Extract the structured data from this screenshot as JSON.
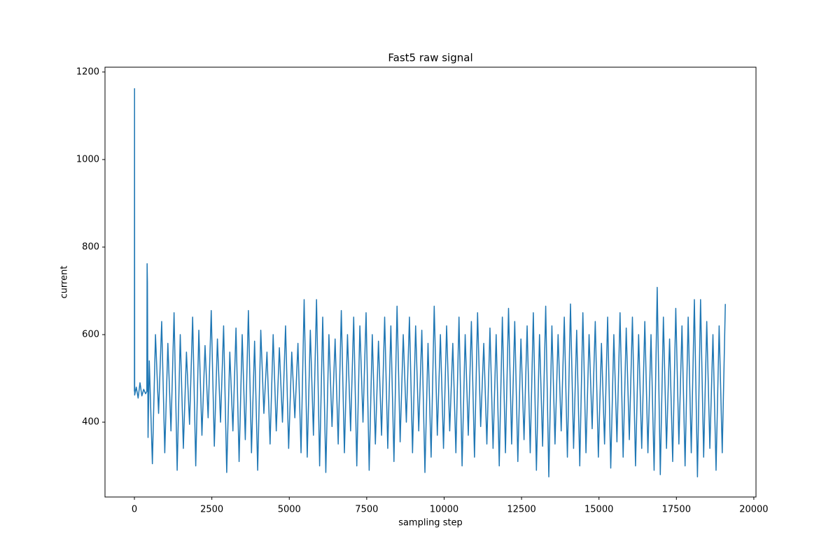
{
  "chart_data": {
    "type": "line",
    "title": "Fast5 raw signal",
    "x_label": "sampling step",
    "y_label": "current",
    "xlim": [
      -950,
      20070
    ],
    "ylim": [
      229,
      1211
    ],
    "xticks": [
      0,
      2500,
      5000,
      7500,
      10000,
      12500,
      15000,
      17500,
      20000
    ],
    "yticks": [
      400,
      600,
      800,
      1000,
      1200
    ],
    "series": [
      {
        "color": "#1f77b4",
        "x": [
          0,
          4,
          8,
          60,
          120,
          180,
          240,
          300,
          360,
          400,
          410,
          420,
          440,
          480,
          580,
          680,
          780,
          880,
          980,
          1080,
          1180,
          1280,
          1380,
          1480,
          1580,
          1680,
          1780,
          1880,
          1980,
          2080,
          2180,
          2280,
          2380,
          2480,
          2580,
          2680,
          2780,
          2880,
          2980,
          3080,
          3180,
          3280,
          3380,
          3480,
          3580,
          3680,
          3780,
          3880,
          3980,
          4080,
          4180,
          4280,
          4380,
          4480,
          4580,
          4680,
          4780,
          4880,
          4980,
          5080,
          5180,
          5280,
          5380,
          5480,
          5580,
          5680,
          5780,
          5880,
          5980,
          6080,
          6180,
          6280,
          6380,
          6480,
          6580,
          6680,
          6780,
          6880,
          6980,
          7080,
          7180,
          7280,
          7380,
          7480,
          7580,
          7680,
          7780,
          7880,
          7980,
          8080,
          8180,
          8280,
          8380,
          8480,
          8580,
          8680,
          8780,
          8880,
          8980,
          9080,
          9180,
          9280,
          9380,
          9480,
          9580,
          9680,
          9780,
          9880,
          9980,
          10080,
          10180,
          10280,
          10380,
          10480,
          10580,
          10680,
          10780,
          10880,
          10980,
          11080,
          11180,
          11280,
          11380,
          11480,
          11580,
          11680,
          11780,
          11880,
          11980,
          12080,
          12180,
          12280,
          12380,
          12480,
          12580,
          12680,
          12780,
          12880,
          12980,
          13080,
          13180,
          13280,
          13380,
          13480,
          13580,
          13680,
          13780,
          13880,
          13980,
          14080,
          14180,
          14280,
          14380,
          14480,
          14580,
          14680,
          14780,
          14880,
          14980,
          15080,
          15180,
          15280,
          15380,
          15480,
          15580,
          15680,
          15780,
          15880,
          15980,
          16080,
          16180,
          16280,
          16380,
          16480,
          16580,
          16680,
          16780,
          16880,
          16980,
          17080,
          17180,
          17280,
          17380,
          17480,
          17580,
          17680,
          17780,
          17880,
          17980,
          18080,
          18180,
          18280,
          18380,
          18480,
          18580,
          18680,
          18780,
          18880,
          18980,
          19080
        ],
        "values": [
          470,
          1162,
          462,
          480,
          455,
          490,
          460,
          475,
          465,
          470,
          762,
          720,
          365,
          540,
          305,
          600,
          420,
          630,
          330,
          580,
          380,
          650,
          290,
          600,
          340,
          560,
          395,
          640,
          300,
          610,
          370,
          575,
          410,
          655,
          345,
          590,
          400,
          620,
          285,
          560,
          380,
          615,
          310,
          600,
          360,
          655,
          330,
          585,
          290,
          610,
          420,
          560,
          350,
          600,
          380,
          570,
          400,
          620,
          340,
          560,
          410,
          580,
          330,
          680,
          320,
          610,
          370,
          680,
          300,
          640,
          285,
          600,
          390,
          590,
          350,
          655,
          330,
          600,
          380,
          640,
          300,
          620,
          400,
          650,
          290,
          600,
          350,
          585,
          370,
          640,
          340,
          620,
          310,
          665,
          355,
          600,
          400,
          640,
          330,
          620,
          380,
          610,
          285,
          580,
          320,
          665,
          370,
          600,
          340,
          620,
          380,
          580,
          330,
          640,
          300,
          600,
          370,
          630,
          320,
          650,
          390,
          580,
          350,
          615,
          340,
          600,
          300,
          640,
          330,
          660,
          350,
          630,
          310,
          590,
          360,
          620,
          330,
          650,
          290,
          600,
          345,
          665,
          275,
          620,
          350,
          600,
          380,
          640,
          320,
          670,
          340,
          610,
          300,
          650,
          330,
          600,
          385,
          630,
          320,
          580,
          350,
          640,
          295,
          600,
          355,
          650,
          320,
          615,
          360,
          640,
          300,
          600,
          340,
          630,
          330,
          600,
          290,
          708,
          280,
          640,
          340,
          590,
          310,
          660,
          350,
          620,
          300,
          640,
          330,
          680,
          275,
          680,
          320,
          630,
          340,
          600,
          290,
          620,
          330,
          670
        ]
      }
    ]
  }
}
